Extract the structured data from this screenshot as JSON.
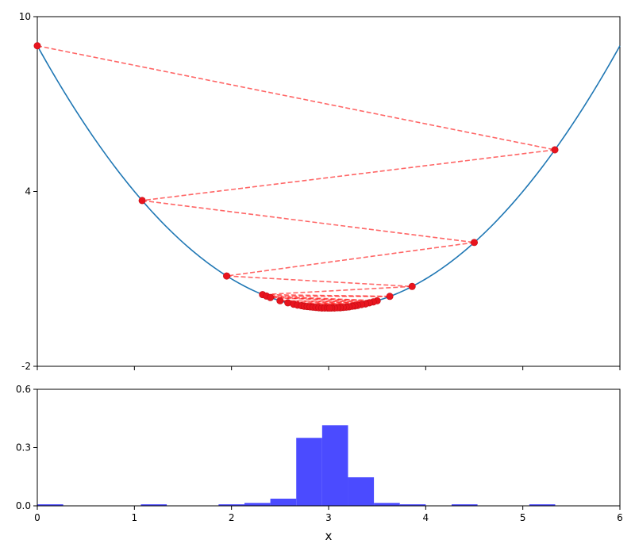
{
  "chart_data": [
    {
      "type": "line",
      "title": "",
      "xlabel": "",
      "ylabel": "",
      "xlim": [
        0,
        6
      ],
      "ylim": [
        -2,
        10
      ],
      "yticks": [
        "-2",
        "4",
        "10"
      ],
      "grid": false,
      "curve": {
        "function": "(x-3)^2",
        "color": "#1f77b4"
      },
      "path_color": "#ff0000",
      "path_points": [
        {
          "x": 0.0,
          "y": 9.0
        },
        {
          "x": 5.33,
          "y": 5.43
        },
        {
          "x": 1.08,
          "y": 3.69
        },
        {
          "x": 4.5,
          "y": 2.25
        },
        {
          "x": 1.95,
          "y": 1.1
        },
        {
          "x": 3.86,
          "y": 0.74
        },
        {
          "x": 2.32,
          "y": 0.46
        },
        {
          "x": 3.63,
          "y": 0.4
        },
        {
          "x": 2.36,
          "y": 0.41
        },
        {
          "x": 3.5,
          "y": 0.25
        },
        {
          "x": 2.4,
          "y": 0.36
        },
        {
          "x": 3.46,
          "y": 0.21
        },
        {
          "x": 2.5,
          "y": 0.25
        },
        {
          "x": 3.42,
          "y": 0.18
        },
        {
          "x": 2.58,
          "y": 0.18
        },
        {
          "x": 3.38,
          "y": 0.14
        },
        {
          "x": 2.64,
          "y": 0.13
        },
        {
          "x": 3.34,
          "y": 0.12
        },
        {
          "x": 2.68,
          "y": 0.1
        },
        {
          "x": 3.3,
          "y": 0.09
        },
        {
          "x": 2.72,
          "y": 0.08
        },
        {
          "x": 3.27,
          "y": 0.07
        },
        {
          "x": 2.75,
          "y": 0.06
        },
        {
          "x": 3.24,
          "y": 0.06
        },
        {
          "x": 2.78,
          "y": 0.05
        },
        {
          "x": 3.21,
          "y": 0.04
        },
        {
          "x": 2.81,
          "y": 0.04
        },
        {
          "x": 3.18,
          "y": 0.03
        },
        {
          "x": 2.84,
          "y": 0.03
        },
        {
          "x": 3.15,
          "y": 0.02
        },
        {
          "x": 2.87,
          "y": 0.02
        },
        {
          "x": 3.12,
          "y": 0.01
        },
        {
          "x": 2.9,
          "y": 0.01
        },
        {
          "x": 3.09,
          "y": 0.01
        },
        {
          "x": 2.93,
          "y": 0.0
        },
        {
          "x": 3.06,
          "y": 0.0
        },
        {
          "x": 2.96,
          "y": 0.0
        },
        {
          "x": 3.03,
          "y": 0.0
        },
        {
          "x": 2.99,
          "y": 0.0
        },
        {
          "x": 3.01,
          "y": 0.0
        }
      ]
    },
    {
      "type": "bar",
      "title": "",
      "xlabel": "x",
      "ylabel": "",
      "xlim": [
        0,
        6
      ],
      "ylim": [
        0,
        0.6
      ],
      "xticks": [
        "0",
        "1",
        "2",
        "3",
        "4",
        "5",
        "6"
      ],
      "yticks": [
        "0.0",
        "0.3",
        "0.6"
      ],
      "bar_color": "#4b4bff",
      "bin_width": 0.2667,
      "bins": [
        {
          "x0": 0.0,
          "value": 0.008
        },
        {
          "x0": 1.0667,
          "value": 0.008
        },
        {
          "x0": 1.8667,
          "value": 0.008
        },
        {
          "x0": 2.1333,
          "value": 0.015
        },
        {
          "x0": 2.4,
          "value": 0.037
        },
        {
          "x0": 2.6667,
          "value": 0.35
        },
        {
          "x0": 2.9333,
          "value": 0.415
        },
        {
          "x0": 3.2,
          "value": 0.147
        },
        {
          "x0": 3.4667,
          "value": 0.015
        },
        {
          "x0": 3.7333,
          "value": 0.008
        },
        {
          "x0": 4.2667,
          "value": 0.008
        },
        {
          "x0": 5.0667,
          "value": 0.008
        }
      ]
    }
  ]
}
